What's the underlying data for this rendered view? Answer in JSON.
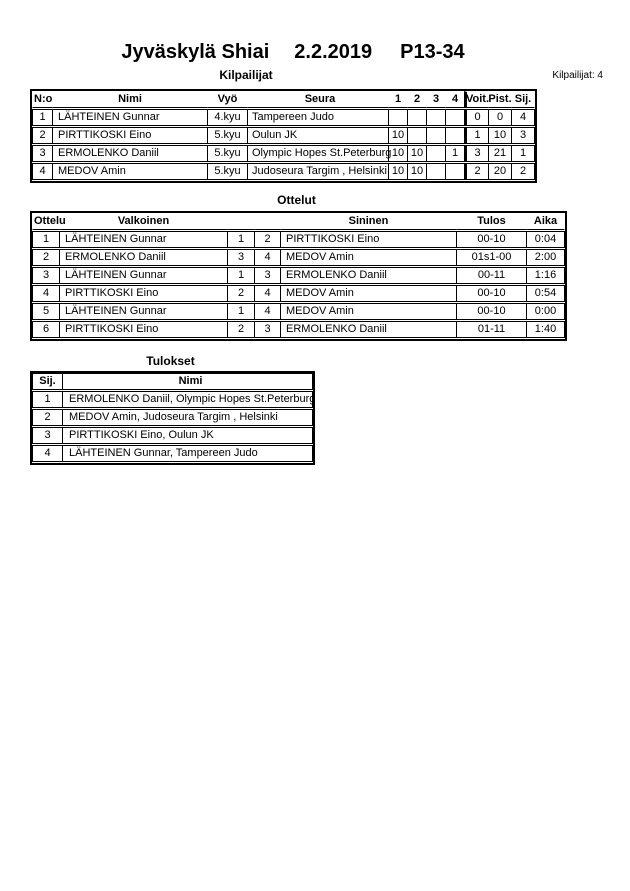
{
  "header": {
    "title_event": "Jyväskylä Shiai",
    "title_date": "2.2.2019",
    "title_category": "P13-34",
    "competitor_count_label": "Kilpailijat: 4"
  },
  "competitors_table": {
    "title": "Kilpailijat",
    "headers": {
      "no": "N:o",
      "name": "Nimi",
      "belt": "Vyö",
      "club": "Seura",
      "rounds": [
        "1",
        "2",
        "3",
        "4"
      ],
      "wins": "Voit.",
      "points": "Pist.",
      "place": "Sij."
    },
    "rows": [
      {
        "no": "1",
        "name": "LÄHTEINEN Gunnar",
        "belt": "4.kyu",
        "club": "Tampereen Judo",
        "rounds": [
          "",
          "",
          "",
          ""
        ],
        "wins": "0",
        "points": "0",
        "place": "4"
      },
      {
        "no": "2",
        "name": "PIRTTIKOSKI Eino",
        "belt": "5.kyu",
        "club": "Oulun JK",
        "rounds": [
          "10",
          "",
          "",
          ""
        ],
        "wins": "1",
        "points": "10",
        "place": "3"
      },
      {
        "no": "3",
        "name": "ERMOLENKO Daniil",
        "belt": "5.kyu",
        "club": "Olympic Hopes St.Peterburg",
        "rounds": [
          "10",
          "10",
          "",
          "1"
        ],
        "wins": "3",
        "points": "21",
        "place": "1"
      },
      {
        "no": "4",
        "name": "MEDOV Amin",
        "belt": "5.kyu",
        "club": "Judoseura Targim , Helsinki",
        "rounds": [
          "10",
          "10",
          "",
          ""
        ],
        "wins": "2",
        "points": "20",
        "place": "2"
      }
    ]
  },
  "matches_table": {
    "title": "Ottelut",
    "headers": {
      "match": "Ottelu",
      "white": "Valkoinen",
      "blue": "Sininen",
      "result": "Tulos",
      "time": "Aika"
    },
    "rows": [
      {
        "match": "1",
        "white": "LÄHTEINEN Gunnar",
        "white_no": "1",
        "blue_no": "2",
        "blue": "PIRTTIKOSKI Eino",
        "result": "00-10",
        "time": "0:04"
      },
      {
        "match": "2",
        "white": "ERMOLENKO Daniil",
        "white_no": "3",
        "blue_no": "4",
        "blue": "MEDOV Amin",
        "result": "01s1-00",
        "time": "2:00"
      },
      {
        "match": "3",
        "white": "LÄHTEINEN Gunnar",
        "white_no": "1",
        "blue_no": "3",
        "blue": "ERMOLENKO Daniil",
        "result": "00-11",
        "time": "1:16"
      },
      {
        "match": "4",
        "white": "PIRTTIKOSKI Eino",
        "white_no": "2",
        "blue_no": "4",
        "blue": "MEDOV Amin",
        "result": "00-10",
        "time": "0:54"
      },
      {
        "match": "5",
        "white": "LÄHTEINEN Gunnar",
        "white_no": "1",
        "blue_no": "4",
        "blue": "MEDOV Amin",
        "result": "00-10",
        "time": "0:00"
      },
      {
        "match": "6",
        "white": "PIRTTIKOSKI Eino",
        "white_no": "2",
        "blue_no": "3",
        "blue": "ERMOLENKO Daniil",
        "result": "01-11",
        "time": "1:40"
      }
    ]
  },
  "results_table": {
    "title": "Tulokset",
    "headers": {
      "place": "Sij.",
      "name": "Nimi"
    },
    "rows": [
      {
        "place": "1",
        "name": "ERMOLENKO Daniil, Olympic Hopes St.Peterburg"
      },
      {
        "place": "2",
        "name": "MEDOV Amin, Judoseura Targim , Helsinki"
      },
      {
        "place": "3",
        "name": "PIRTTIKOSKI Eino, Oulun JK"
      },
      {
        "place": "4",
        "name": "LÄHTEINEN Gunnar, Tampereen Judo"
      }
    ]
  },
  "colors": {
    "text": "#000000",
    "background": "#ffffff",
    "border": "#000000"
  }
}
